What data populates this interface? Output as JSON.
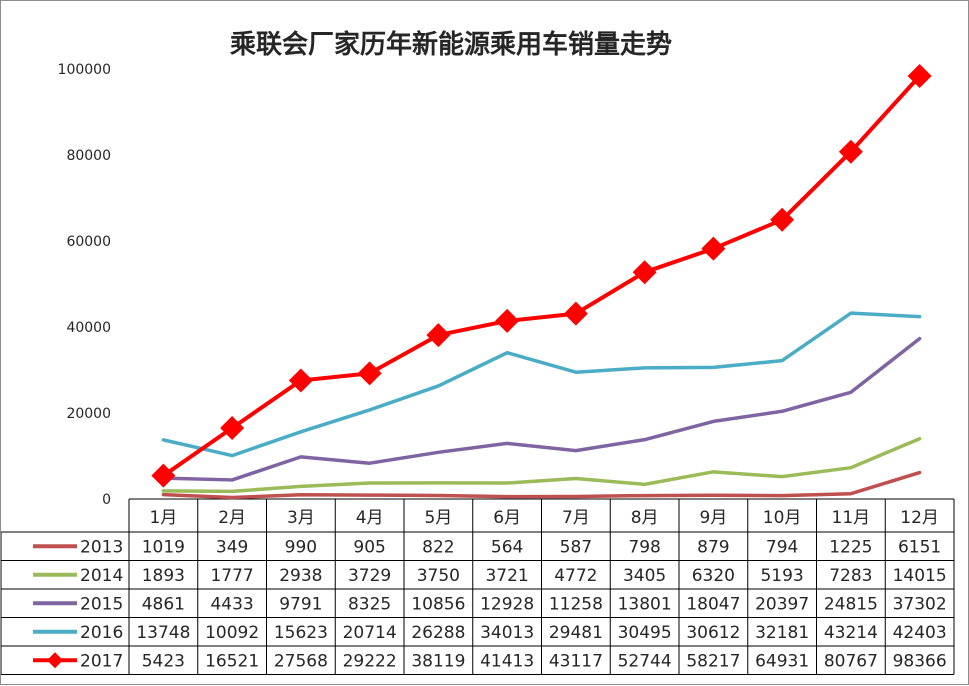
{
  "chart_data": {
    "type": "line",
    "title": "乘联会厂家历年新能源乘用车销量走势",
    "categories": [
      "1月",
      "2月",
      "3月",
      "4月",
      "5月",
      "6月",
      "7月",
      "8月",
      "9月",
      "10月",
      "11月",
      "12月"
    ],
    "ylim": [
      0,
      100000
    ],
    "yticks": [
      "0",
      "20000",
      "40000",
      "60000",
      "80000",
      "100000"
    ],
    "ytick_values": [
      0,
      20000,
      40000,
      60000,
      80000,
      100000
    ],
    "grid": false,
    "legend": "data-table-bottom",
    "series": [
      {
        "name": "2013",
        "color": "#c0504d",
        "marker": "none",
        "values": [
          1019,
          349,
          990,
          905,
          822,
          564,
          587,
          798,
          879,
          794,
          1225,
          6151
        ]
      },
      {
        "name": "2014",
        "color": "#9bbb59",
        "marker": "none",
        "values": [
          1893,
          1777,
          2938,
          3729,
          3750,
          3721,
          4772,
          3405,
          6320,
          5193,
          7283,
          14015
        ]
      },
      {
        "name": "2015",
        "color": "#8064a2",
        "marker": "none",
        "values": [
          4861,
          4433,
          9791,
          8325,
          10856,
          12928,
          11258,
          13801,
          18047,
          20397,
          24815,
          37302
        ]
      },
      {
        "name": "2016",
        "color": "#4bacc6",
        "marker": "none",
        "values": [
          13748,
          10092,
          15623,
          20714,
          26288,
          34013,
          29481,
          30495,
          30612,
          32181,
          43214,
          42403
        ]
      },
      {
        "name": "2017",
        "color": "#ff0000",
        "marker": "diamond",
        "values": [
          5423,
          16521,
          27568,
          29222,
          38119,
          41413,
          43117,
          52744,
          58217,
          64931,
          80767,
          98366
        ]
      }
    ]
  }
}
